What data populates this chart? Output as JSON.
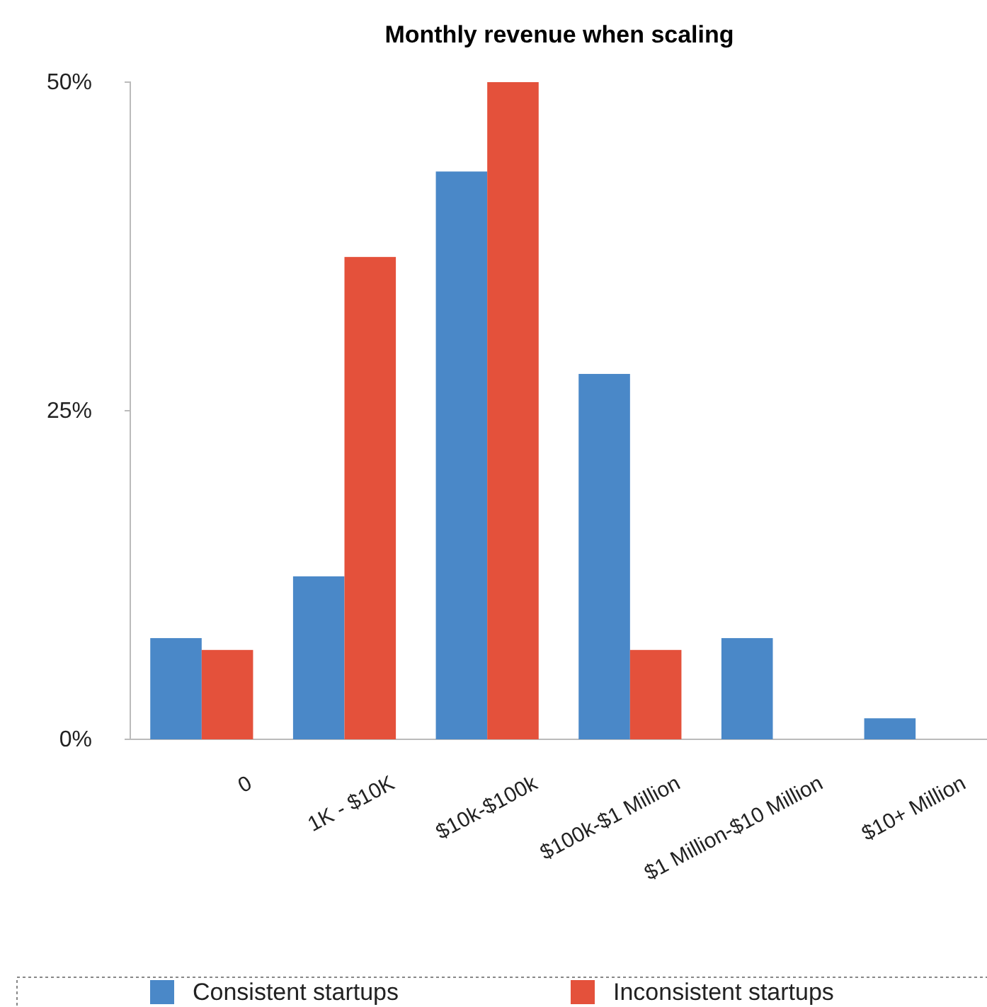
{
  "chart_data": {
    "type": "bar",
    "title": "Monthly revenue when scaling",
    "categories": [
      "0",
      "1K - $10K",
      "$10k-$100k",
      "$100k-$1 Million",
      "$1 Million-$10 Million",
      "$10+ Million"
    ],
    "series": [
      {
        "name": "Consistent startups",
        "color": "#4a88c8",
        "values": [
          7.7,
          12.4,
          43.2,
          27.8,
          7.7,
          1.6
        ]
      },
      {
        "name": "Inconsistent startups",
        "color": "#e4513b",
        "values": [
          6.8,
          36.7,
          50,
          6.8,
          0,
          0
        ]
      }
    ],
    "ylim": [
      0,
      50
    ],
    "yticks": [
      {
        "value": 0,
        "label": "0%"
      },
      {
        "value": 25,
        "label": "25%"
      },
      {
        "value": 50,
        "label": "50%"
      }
    ],
    "grid": false,
    "legend": "bottom"
  }
}
